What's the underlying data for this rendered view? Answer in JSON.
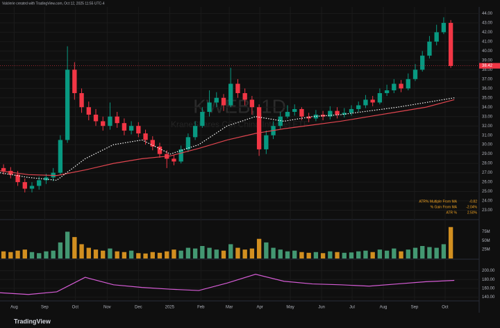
{
  "chart_data": {
    "type": "candlestick",
    "credit": "Valclerie created with TradingView.com, Oct 12, 2025 11:55 UTC-4",
    "watermark_title": "KWEB, 1D",
    "watermark_subtitle": "KraneShares CSI China Internet ETF",
    "brand": "TradingView",
    "xlim": [
      0,
      67.5
    ],
    "xticks": [
      {
        "value": 2,
        "label": "Aug"
      },
      {
        "value": 6.3,
        "label": "Sep"
      },
      {
        "value": 10.6,
        "label": "Oct"
      },
      {
        "value": 15.1,
        "label": "Nov"
      },
      {
        "value": 19.5,
        "label": "Dec"
      },
      {
        "value": 23.9,
        "label": "2025"
      },
      {
        "value": 28.3,
        "label": "Feb"
      },
      {
        "value": 32.3,
        "label": "Mar"
      },
      {
        "value": 36.6,
        "label": "Apr"
      },
      {
        "value": 40.9,
        "label": "May"
      },
      {
        "value": 45.3,
        "label": "Jun"
      },
      {
        "value": 49.6,
        "label": "Jul"
      },
      {
        "value": 54,
        "label": "Aug"
      },
      {
        "value": 58.4,
        "label": "Sep"
      },
      {
        "value": 62.7,
        "label": "Oct"
      }
    ],
    "ylim": [
      22,
      44.7
    ],
    "yticks": [
      {
        "value": 23,
        "label": "23.00"
      },
      {
        "value": 24,
        "label": "24.00"
      },
      {
        "value": 25,
        "label": "25.00"
      },
      {
        "value": 26,
        "label": "26.00"
      },
      {
        "value": 27,
        "label": "27.00"
      },
      {
        "value": 28,
        "label": "28.00"
      },
      {
        "value": 29,
        "label": "29.00"
      },
      {
        "value": 30,
        "label": "30.00"
      },
      {
        "value": 31,
        "label": "31.00"
      },
      {
        "value": 32,
        "label": "32.00"
      },
      {
        "value": 33,
        "label": "33.00"
      },
      {
        "value": 34,
        "label": "34.00"
      },
      {
        "value": 35,
        "label": "35.00"
      },
      {
        "value": 36,
        "label": "36.00"
      },
      {
        "value": 37,
        "label": "37.00"
      },
      {
        "value": 38,
        "label": "38.00"
      },
      {
        "value": 39,
        "label": "39.00"
      },
      {
        "value": 40,
        "label": "40.00"
      },
      {
        "value": 41,
        "label": "41.00"
      },
      {
        "value": 42,
        "label": "42.00"
      },
      {
        "value": 43,
        "label": "43.00"
      },
      {
        "value": 44,
        "label": "44.00"
      }
    ],
    "last_price": 38.42,
    "up_color": "#089981",
    "down_color": "#f23645",
    "x": [
      0.5,
      1.5,
      2.5,
      3.5,
      4.5,
      5.5,
      6.5,
      7.5,
      8.5,
      9.5,
      10.5,
      11.5,
      12.5,
      13.5,
      14.5,
      15.5,
      16.5,
      17.5,
      18.5,
      19.5,
      20.5,
      21.5,
      22.5,
      23.5,
      24.5,
      25.5,
      26.5,
      27.5,
      28.5,
      29.5,
      30.5,
      31.5,
      32.5,
      33.5,
      34.5,
      35.5,
      36.5,
      37.5,
      38.5,
      39.5,
      40.5,
      41.5,
      42.5,
      43.5,
      44.5,
      45.5,
      46.5,
      47.5,
      48.5,
      49.5,
      50.5,
      51.5,
      52.5,
      53.5,
      54.5,
      55.5,
      56.5,
      57.5,
      58.5,
      59.5,
      60.5,
      61.5,
      62.5,
      63.5
    ],
    "open": [
      27.5,
      27.2,
      26.8,
      26.0,
      25.3,
      25.6,
      26.2,
      26.5,
      27.0,
      30.5,
      38.0,
      35.5,
      34.0,
      33.2,
      32.5,
      32.0,
      33.0,
      32.3,
      31.5,
      32.0,
      31.2,
      30.5,
      29.8,
      29.0,
      28.5,
      28.2,
      29.5,
      30.8,
      32.0,
      33.5,
      34.5,
      35.0,
      34.2,
      36.5,
      35.5,
      34.8,
      34.0,
      29.5,
      31.0,
      32.0,
      33.0,
      33.5,
      33.8,
      33.0,
      32.8,
      33.2,
      33.0,
      33.6,
      33.2,
      33.4,
      33.8,
      34.2,
      34.8,
      34.5,
      35.5,
      35.8,
      36.5,
      36.0,
      37.0,
      38.0,
      39.5,
      41.0,
      42.0,
      43.0
    ],
    "high": [
      27.9,
      27.6,
      27.2,
      26.4,
      26.0,
      26.6,
      26.9,
      27.5,
      31.0,
      40.5,
      38.8,
      36.0,
      34.6,
      33.8,
      33.0,
      34.5,
      33.5,
      32.8,
      32.5,
      32.4,
      31.6,
      30.9,
      30.2,
      29.4,
      28.9,
      29.9,
      31.2,
      32.5,
      34.0,
      35.8,
      35.6,
      35.4,
      38.2,
      37.0,
      36.0,
      35.2,
      34.3,
      31.5,
      32.5,
      33.5,
      34.2,
      34.3,
      34.0,
      33.4,
      33.7,
      33.6,
      34.1,
      34.0,
      33.9,
      34.2,
      34.6,
      35.3,
      35.2,
      36.0,
      36.4,
      37.0,
      36.9,
      37.6,
      38.6,
      40.0,
      41.6,
      42.8,
      43.6,
      43.3
    ],
    "low": [
      26.8,
      26.4,
      25.6,
      24.9,
      24.9,
      25.2,
      25.8,
      26.1,
      26.8,
      30.2,
      34.8,
      33.4,
      32.6,
      32.0,
      31.5,
      31.6,
      31.8,
      31.0,
      31.1,
      30.8,
      30.0,
      29.4,
      28.6,
      27.5,
      27.8,
      28.0,
      29.2,
      30.5,
      31.8,
      33.0,
      34.0,
      33.6,
      34.0,
      35.0,
      34.2,
      33.2,
      28.8,
      29.0,
      30.6,
      31.7,
      32.8,
      33.1,
      32.6,
      32.4,
      32.5,
      32.6,
      32.7,
      32.8,
      32.9,
      33.1,
      33.5,
      33.9,
      34.1,
      34.3,
      35.2,
      35.5,
      35.6,
      35.8,
      36.8,
      37.8,
      39.2,
      40.6,
      41.8,
      38.2
    ],
    "close": [
      27.2,
      26.8,
      26.0,
      25.3,
      25.6,
      26.2,
      26.5,
      27.0,
      30.5,
      38.0,
      35.5,
      34.0,
      33.2,
      32.5,
      32.0,
      33.0,
      32.3,
      31.5,
      32.0,
      31.2,
      30.5,
      29.8,
      29.0,
      28.5,
      28.2,
      29.5,
      30.8,
      32.0,
      33.5,
      34.5,
      35.0,
      34.2,
      36.5,
      35.5,
      34.8,
      34.0,
      29.5,
      31.0,
      32.0,
      33.0,
      33.5,
      33.8,
      33.0,
      32.8,
      33.2,
      33.0,
      33.6,
      33.2,
      33.4,
      33.8,
      34.2,
      34.8,
      34.5,
      35.5,
      35.8,
      36.5,
      36.0,
      37.0,
      38.0,
      39.5,
      41.0,
      42.0,
      43.0,
      38.4
    ],
    "moving_averages": [
      {
        "color": "#e0454f",
        "dash": false,
        "x": [
          0,
          4,
          8,
          12,
          16,
          20,
          24,
          28,
          32,
          36,
          40,
          44,
          48,
          52,
          56,
          60,
          64
        ],
        "values": [
          27.2,
          26.8,
          26.7,
          27.3,
          28.0,
          28.5,
          28.8,
          29.6,
          30.5,
          31.2,
          31.7,
          32.1,
          32.5,
          33.0,
          33.5,
          34.0,
          34.8
        ]
      },
      {
        "color": "#ffffff",
        "dash": true,
        "x": [
          0,
          4,
          8,
          12,
          16,
          20,
          24,
          28,
          32,
          36,
          40,
          44,
          48,
          52,
          56,
          60,
          64
        ],
        "values": [
          27.0,
          26.5,
          26.2,
          28.5,
          30.0,
          30.5,
          29.0,
          30.0,
          32.0,
          33.0,
          32.5,
          33.0,
          33.2,
          33.6,
          34.0,
          34.5,
          35.0
        ]
      }
    ],
    "stats": [
      {
        "label": "ATR% Multiple From MA",
        "value": "-0.82"
      },
      {
        "label": "% Gain From MA",
        "value": "-2.04%"
      },
      {
        "label": "ATR %",
        "value": "2.50%"
      }
    ],
    "volume": {
      "ylim": [
        0,
        105
      ],
      "yticks": [
        {
          "value": 25,
          "label": "25M"
        },
        {
          "value": 50,
          "label": "50M"
        },
        {
          "value": 75,
          "label": "75M"
        }
      ],
      "values": [
        20,
        18,
        22,
        25,
        18,
        15,
        20,
        22,
        45,
        75,
        60,
        40,
        30,
        25,
        22,
        28,
        20,
        18,
        22,
        15,
        14,
        18,
        16,
        20,
        25,
        22,
        30,
        28,
        35,
        30,
        25,
        22,
        40,
        30,
        25,
        28,
        55,
        45,
        30,
        25,
        20,
        22,
        18,
        16,
        18,
        15,
        20,
        18,
        16,
        17,
        20,
        22,
        18,
        25,
        22,
        28,
        20,
        25,
        30,
        35,
        32,
        30,
        40,
        88
      ]
    },
    "indicator": {
      "color": "#d65cd6",
      "ylim": [
        133,
        223
      ],
      "yticks": [
        {
          "value": 140,
          "label": "140.00"
        },
        {
          "value": 160,
          "label": "160.00"
        },
        {
          "value": 180,
          "label": "180.00"
        },
        {
          "value": 200,
          "label": "200.00"
        }
      ],
      "x": [
        0,
        4,
        8,
        12,
        16,
        20,
        24,
        28,
        32,
        36,
        40,
        44,
        48,
        52,
        56,
        60,
        64
      ],
      "values": [
        150,
        146,
        152,
        185,
        168,
        162,
        158,
        155,
        172,
        192,
        176,
        170,
        168,
        165,
        170,
        175,
        178
      ]
    }
  }
}
